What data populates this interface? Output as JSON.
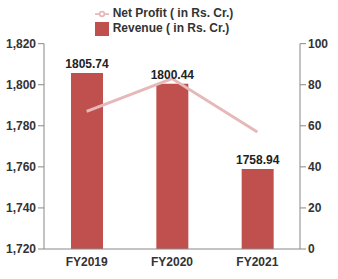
{
  "chart_data": {
    "type": "bar",
    "categories": [
      "FY2019",
      "FY2020",
      "FY2021"
    ],
    "series": [
      {
        "name": "Revenue ( in Rs. Cr.)",
        "type": "bar",
        "color": "#C0504D",
        "values": [
          1805.74,
          1800.44,
          1758.94
        ],
        "data_labels": true
      },
      {
        "name": "Net Profit ( in Rs. Cr.)",
        "type": "line",
        "color": "#E6B9B8",
        "axis": "y2",
        "marker": "none",
        "values": [
          67,
          83,
          57
        ]
      }
    ],
    "ylim": [
      1720,
      1820
    ],
    "yticks": [
      {
        "value": 1720,
        "label": "1,720"
      },
      {
        "value": 1740,
        "label": "1,740"
      },
      {
        "value": 1760,
        "label": "1,760"
      },
      {
        "value": 1780,
        "label": "1,780"
      },
      {
        "value": 1800,
        "label": "1,800"
      },
      {
        "value": 1820,
        "label": "1,820"
      }
    ],
    "y2lim": [
      0,
      100
    ],
    "y2ticks": [
      0,
      20,
      40,
      60,
      80,
      100
    ],
    "grid": false,
    "legend": "top"
  }
}
